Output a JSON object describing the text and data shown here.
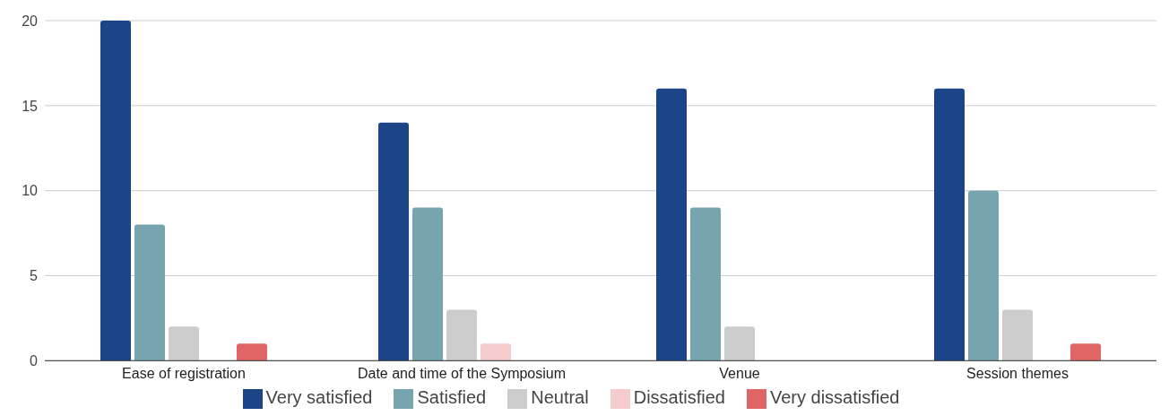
{
  "chart_data": {
    "type": "bar",
    "categories": [
      "Ease of registration",
      "Date and time of the Symposium",
      "Venue",
      "Session themes"
    ],
    "series": [
      {
        "name": "Very satisfied",
        "color": "#1c4587",
        "values": [
          20,
          14,
          16,
          16
        ]
      },
      {
        "name": "Satisfied",
        "color": "#76a5af",
        "values": [
          8,
          9,
          9,
          10
        ]
      },
      {
        "name": "Neutral",
        "color": "#cccccc",
        "values": [
          2,
          3,
          2,
          3
        ]
      },
      {
        "name": "Dissatisfied",
        "color": "#f4cccc",
        "values": [
          0,
          1,
          0,
          0
        ]
      },
      {
        "name": "Very dissatisfied",
        "color": "#e06666",
        "values": [
          1,
          0,
          0,
          1
        ]
      }
    ],
    "ylim": [
      0,
      20
    ],
    "yticks": [
      0,
      5,
      10,
      15,
      20
    ],
    "grid": "y",
    "legend": "bottom"
  }
}
